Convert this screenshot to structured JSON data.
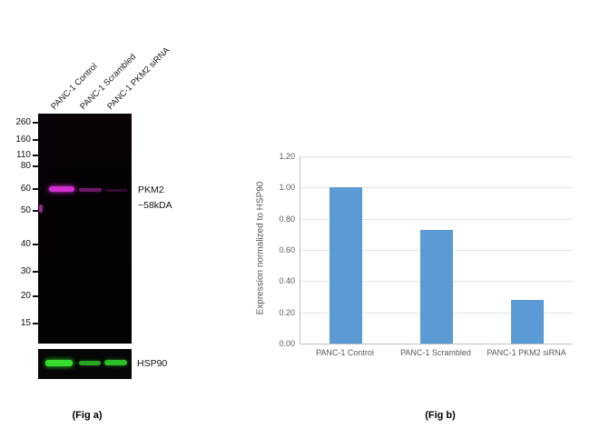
{
  "fig_a": {
    "caption": "(Fig a)",
    "lane_labels": [
      "PANC-1 Control",
      "PANC-1 Scrambled",
      "PANC-1 PKM2 siRNA"
    ],
    "mw_markers": [
      "260",
      "160",
      "110",
      "80",
      "60",
      "50",
      "40",
      "30",
      "20",
      "15"
    ],
    "band_label_line1": "PKM2",
    "band_label_line2": "~58kDA",
    "loading_control_label": "HSP90",
    "pkm2_band_intensities": {
      "PANC-1 Control": "strong",
      "PANC-1 Scrambled": "weak",
      "PANC-1 PKM2 siRNA": "very faint"
    },
    "colors": {
      "pkm2_band": "#d42fd0",
      "hsp90_band": "#35e02c",
      "blot_background": "#050105"
    }
  },
  "fig_b": {
    "caption": "(Fig b)"
  },
  "chart_data": {
    "type": "bar",
    "title": "",
    "categories": [
      "PANC-1 Control",
      "PANC-1 Scrambled",
      "PANC-1 PKM2 siRNA"
    ],
    "values": [
      1.0,
      0.73,
      0.28
    ],
    "xlabel": "",
    "ylabel": "Expression normalized to HSP90",
    "ylim": [
      0,
      1.2
    ],
    "yticks": [
      0.0,
      0.2,
      0.4,
      0.6,
      0.8,
      1.0,
      1.2
    ],
    "ytick_labels": [
      "0.00",
      "0.20",
      "0.40",
      "0.60",
      "0.80",
      "1.00",
      "1.20"
    ],
    "grid": true,
    "legend": false,
    "bar_color": "#5b9bd5"
  }
}
